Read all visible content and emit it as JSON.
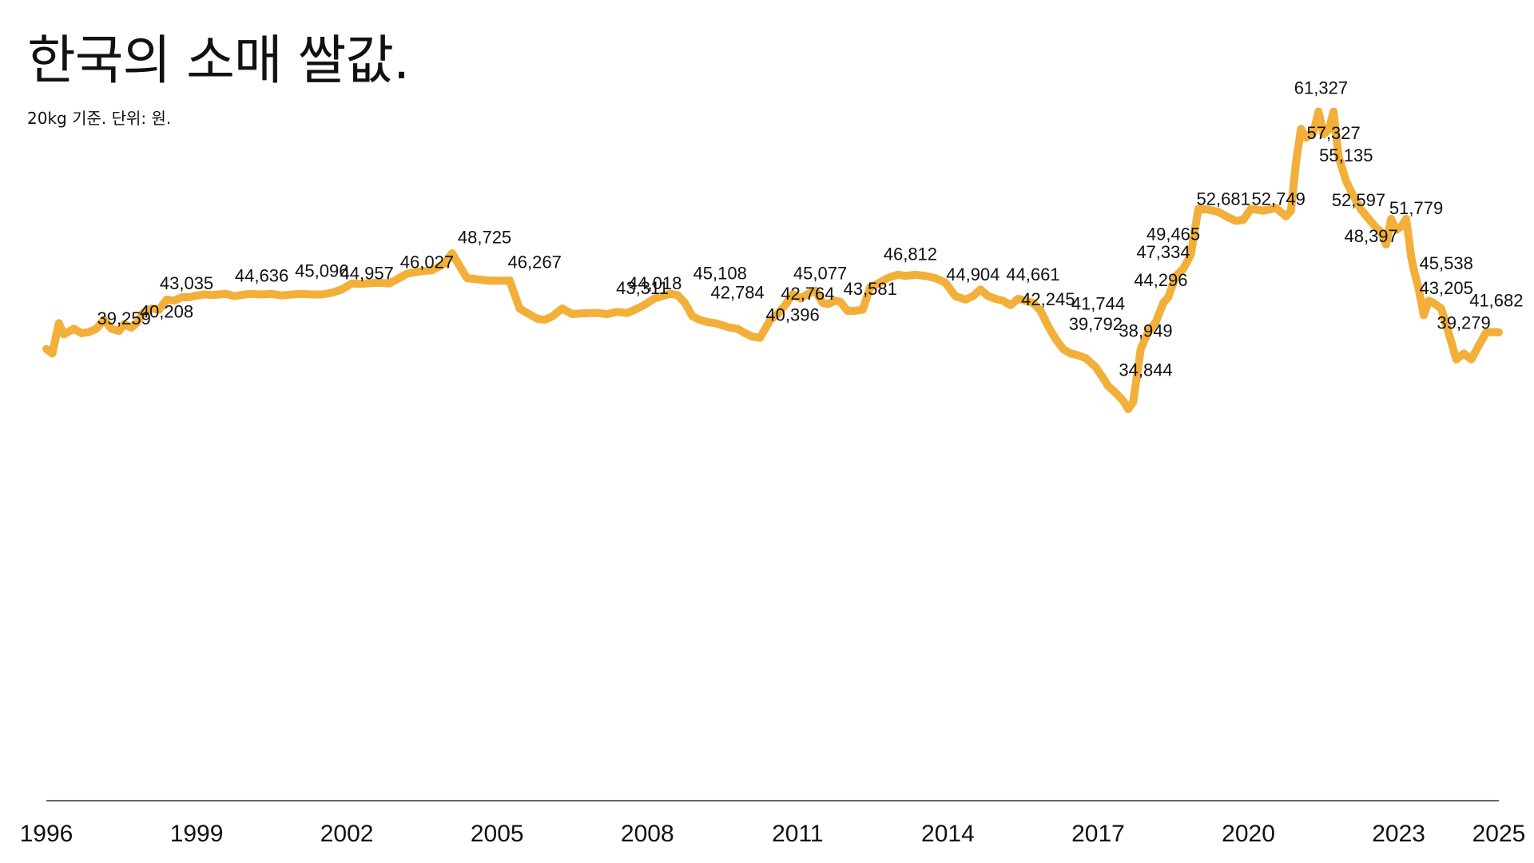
{
  "title": "한국의 소매 쌀값.",
  "subtitle": "20kg 기준. 단위: 원.",
  "chart_data": {
    "type": "line",
    "title": "한국의 소매 쌀값.",
    "subtitle": "20kg 기준. 단위: 원.",
    "xlabel": "",
    "ylabel": "",
    "xlim": [
      1996.0,
      2025.0
    ],
    "ylim": [
      0,
      65000
    ],
    "grid": false,
    "line_color": "#F2B03A",
    "axis_color": "#333333",
    "x_ticks": [
      "1996",
      "1999",
      "2002",
      "2005",
      "2008",
      "2011",
      "2014",
      "2017",
      "2020",
      "2023",
      "2025"
    ],
    "x": [
      1996.0,
      1996.12,
      1996.25,
      1996.35,
      1996.55,
      1996.7,
      1996.85,
      1997.0,
      1997.15,
      1997.3,
      1997.45,
      1997.55,
      1997.7,
      1997.8,
      1997.95,
      1998.1,
      1998.25,
      1998.4,
      1998.55,
      1998.7,
      1998.85,
      1999.0,
      1999.15,
      1999.3,
      1999.45,
      1999.6,
      1999.75,
      1999.9,
      2000.05,
      2000.3,
      2000.5,
      2000.7,
      2000.9,
      2001.1,
      2001.3,
      2001.5,
      2001.7,
      2001.9,
      2002.1,
      2002.25,
      2002.45,
      2002.65,
      2002.85,
      2003.0,
      2003.2,
      2003.45,
      2003.7,
      2003.95,
      2004.1,
      2004.25,
      2004.4,
      2004.6,
      2004.85,
      2004.95,
      2005.1,
      2005.25,
      2005.45,
      2005.6,
      2005.8,
      2005.95,
      2006.1,
      2006.3,
      2006.5,
      2006.65,
      2006.85,
      2007.0,
      2007.2,
      2007.4,
      2007.6,
      2007.75,
      2007.9,
      2008.0,
      2008.15,
      2008.3,
      2008.45,
      2008.6,
      2008.75,
      2008.9,
      2009.05,
      2009.2,
      2009.35,
      2009.5,
      2009.65,
      2009.8,
      2009.95,
      2010.1,
      2010.25,
      2010.45,
      2010.6,
      2010.75,
      2010.9,
      2011.05,
      2011.2,
      2011.35,
      2011.5,
      2011.6,
      2011.75,
      2011.85,
      2012.0,
      2012.15,
      2012.3,
      2012.45,
      2012.6,
      2012.75,
      2012.85,
      2013.0,
      2013.15,
      2013.35,
      2013.55,
      2013.75,
      2013.95,
      2014.15,
      2014.35,
      2014.5,
      2014.65,
      2014.8,
      2014.95,
      2015.1,
      2015.25,
      2015.4,
      2015.55,
      2015.7,
      2015.85,
      2016.0,
      2016.15,
      2016.3,
      2016.45,
      2016.55,
      2016.75,
      2016.95,
      2017.1,
      2017.2,
      2017.35,
      2017.5,
      2017.6,
      2017.7,
      2017.85,
      2018.0,
      2018.15,
      2018.3,
      2018.4,
      2018.55,
      2018.7,
      2018.85,
      2019.0,
      2019.2,
      2019.4,
      2019.6,
      2019.75,
      2019.9,
      2020.05,
      2020.3,
      2020.55,
      2020.75,
      2020.85,
      2020.95,
      2021.05,
      2021.15,
      2021.3,
      2021.4,
      2021.5,
      2021.6,
      2021.7,
      2021.8,
      2021.95,
      2022.1,
      2022.25,
      2022.4,
      2022.55,
      2022.65,
      2022.75,
      2022.85,
      2022.95,
      2023.05,
      2023.15,
      2023.25,
      2023.3,
      2023.4,
      2023.5,
      2023.6,
      2023.7,
      2023.85,
      2024.0,
      2024.15,
      2024.3,
      2024.45,
      2024.6,
      2024.75,
      2024.9,
      2025.0
    ],
    "y": [
      40200,
      39800,
      42500,
      41500,
      42000,
      41600,
      41700,
      42000,
      42800,
      42000,
      41800,
      42400,
      42100,
      42500,
      43500,
      43800,
      43700,
      44600,
      44500,
      44800,
      44800,
      44950,
      45050,
      45000,
      45050,
      45096,
      44900,
      45000,
      45100,
      45050,
      45100,
      44957,
      45050,
      45100,
      45050,
      45050,
      45200,
      45500,
      46027,
      46000,
      46050,
      46100,
      46027,
      46400,
      46900,
      47100,
      47200,
      47800,
      48725,
      47600,
      46500,
      46400,
      46267,
      46300,
      46267,
      46300,
      43800,
      43400,
      42900,
      42800,
      43100,
      43800,
      43311,
      43350,
      43400,
      43400,
      43300,
      43500,
      43400,
      43700,
      44018,
      44300,
      44700,
      44900,
      45108,
      45000,
      44300,
      43100,
      42784,
      42600,
      42500,
      42300,
      42100,
      42000,
      41600,
      41300,
      41200,
      42764,
      43300,
      44100,
      45077,
      44700,
      45077,
      45400,
      44300,
      44200,
      44500,
      44400,
      43581,
      43600,
      43700,
      45700,
      46000,
      46400,
      46600,
      46812,
      46700,
      46800,
      46700,
      46500,
      46100,
      44904,
      44600,
      44900,
      45500,
      44904,
      44661,
      44500,
      44100,
      44661,
      44500,
      44300,
      43600,
      42245,
      41100,
      40200,
      39792,
      39700,
      39400,
      38600,
      37600,
      36900,
      36300,
      35600,
      34844,
      35500,
      40200,
      41744,
      42600,
      44296,
      44800,
      46700,
      47334,
      48600,
      52681,
      52600,
      52400,
      51900,
      51600,
      51700,
      52681,
      52500,
      52749,
      52000,
      52500,
      56800,
      59800,
      59000,
      59500,
      61327,
      59300,
      59700,
      61327,
      57327,
      55135,
      53800,
      52597,
      51800,
      51000,
      50600,
      49500,
      51779,
      50800,
      51100,
      51779,
      48397,
      47300,
      45538,
      43205,
      44500,
      44300,
      43800,
      41600,
      39279,
      39800,
      39279,
      40500,
      41682,
      41700,
      41682
    ],
    "annotations": [
      {
        "x": 1997.55,
        "y": 42400,
        "label": "39,259"
      },
      {
        "x": 1998.4,
        "y": 43000,
        "label": "40,208"
      },
      {
        "x": 1998.8,
        "y": 45500,
        "label": "43,035"
      },
      {
        "x": 2000.3,
        "y": 46200,
        "label": "44,636"
      },
      {
        "x": 2001.5,
        "y": 46600,
        "label": "45,096"
      },
      {
        "x": 2002.4,
        "y": 46400,
        "label": "44,957"
      },
      {
        "x": 2003.6,
        "y": 47400,
        "label": "46,027"
      },
      {
        "x": 2004.75,
        "y": 49600,
        "label": "48,725"
      },
      {
        "x": 2005.75,
        "y": 47400,
        "label": "46,267"
      },
      {
        "x": 2007.9,
        "y": 45100,
        "label": "43,311"
      },
      {
        "x": 2008.15,
        "y": 45500,
        "label": "44,018"
      },
      {
        "x": 2009.45,
        "y": 46400,
        "label": "45,108"
      },
      {
        "x": 2009.8,
        "y": 44700,
        "label": "42,784"
      },
      {
        "x": 2010.9,
        "y": 42700,
        "label": "40,396"
      },
      {
        "x": 2011.2,
        "y": 44600,
        "label": "42,764"
      },
      {
        "x": 2011.45,
        "y": 46400,
        "label": "45,077"
      },
      {
        "x": 2012.45,
        "y": 45000,
        "label": "43,581"
      },
      {
        "x": 2013.25,
        "y": 48100,
        "label": "46,812"
      },
      {
        "x": 2014.5,
        "y": 46300,
        "label": "44,904"
      },
      {
        "x": 2015.7,
        "y": 46300,
        "label": "44,661"
      },
      {
        "x": 2016.0,
        "y": 44100,
        "label": "42,245"
      },
      {
        "x": 2016.95,
        "y": 41900,
        "label": "39,792"
      },
      {
        "x": 2017.0,
        "y": 43700,
        "label": "41,744"
      },
      {
        "x": 2017.95,
        "y": 41300,
        "label": "38,949"
      },
      {
        "x": 2017.95,
        "y": 37800,
        "label": "34,844"
      },
      {
        "x": 2018.25,
        "y": 45800,
        "label": "44,296"
      },
      {
        "x": 2018.3,
        "y": 48300,
        "label": "47,334"
      },
      {
        "x": 2018.5,
        "y": 49900,
        "label": "49,465"
      },
      {
        "x": 2019.5,
        "y": 53000,
        "label": "52,681"
      },
      {
        "x": 2020.6,
        "y": 53000,
        "label": "52,749"
      },
      {
        "x": 2021.45,
        "y": 62900,
        "label": "61,327"
      },
      {
        "x": 2021.7,
        "y": 58900,
        "label": "57,327"
      },
      {
        "x": 2021.95,
        "y": 56900,
        "label": "55,135"
      },
      {
        "x": 2022.2,
        "y": 52900,
        "label": "52,597"
      },
      {
        "x": 2022.45,
        "y": 49700,
        "label": "48,397"
      },
      {
        "x": 2023.35,
        "y": 52200,
        "label": "51,779"
      },
      {
        "x": 2023.95,
        "y": 47300,
        "label": "45,538"
      },
      {
        "x": 2023.95,
        "y": 45100,
        "label": "43,205"
      },
      {
        "x": 2024.3,
        "y": 42000,
        "label": "39,279"
      },
      {
        "x": 2024.95,
        "y": 44000,
        "label": "41,682"
      }
    ]
  }
}
